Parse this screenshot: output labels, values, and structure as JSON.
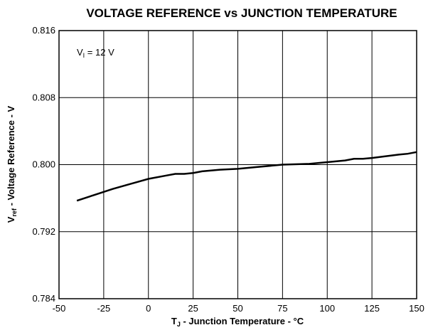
{
  "chart_data": {
    "type": "line",
    "title": "VOLTAGE REFERENCE vs JUNCTION TEMPERATURE",
    "ylabel": {
      "main": "V",
      "sub": "ref",
      "rest": " - Voltage Reference - V"
    },
    "xlabel": {
      "main": "T",
      "sub": "J",
      "rest": " - Junction Temperature - °C"
    },
    "annotation": {
      "main": "V",
      "sub": "I",
      "rest": " = 12 V"
    },
    "x": [
      -40,
      -30,
      -20,
      -10,
      0,
      10,
      15,
      20,
      25,
      30,
      40,
      50,
      60,
      70,
      75,
      90,
      100,
      110,
      115,
      120,
      125,
      140,
      145,
      150
    ],
    "series": [
      {
        "color": "#000000",
        "values": [
          0.7957,
          0.7964,
          0.7971,
          0.7977,
          0.7983,
          0.7987,
          0.7989,
          0.7989,
          0.799,
          0.7992,
          0.7994,
          0.7995,
          0.7997,
          0.7999,
          0.8,
          0.8001,
          0.8003,
          0.8005,
          0.8007,
          0.8007,
          0.8008,
          0.8012,
          0.8013,
          0.8015
        ]
      }
    ],
    "xlim": [
      -50,
      150
    ],
    "xticks": [
      -50,
      -25,
      0,
      25,
      50,
      75,
      100,
      125,
      150
    ],
    "ylim": [
      0.784,
      0.816
    ],
    "yticks": [
      0.784,
      0.792,
      {
        "value": 0.8,
        "label": "0.800"
      },
      0.808,
      0.816
    ],
    "grid": true
  }
}
